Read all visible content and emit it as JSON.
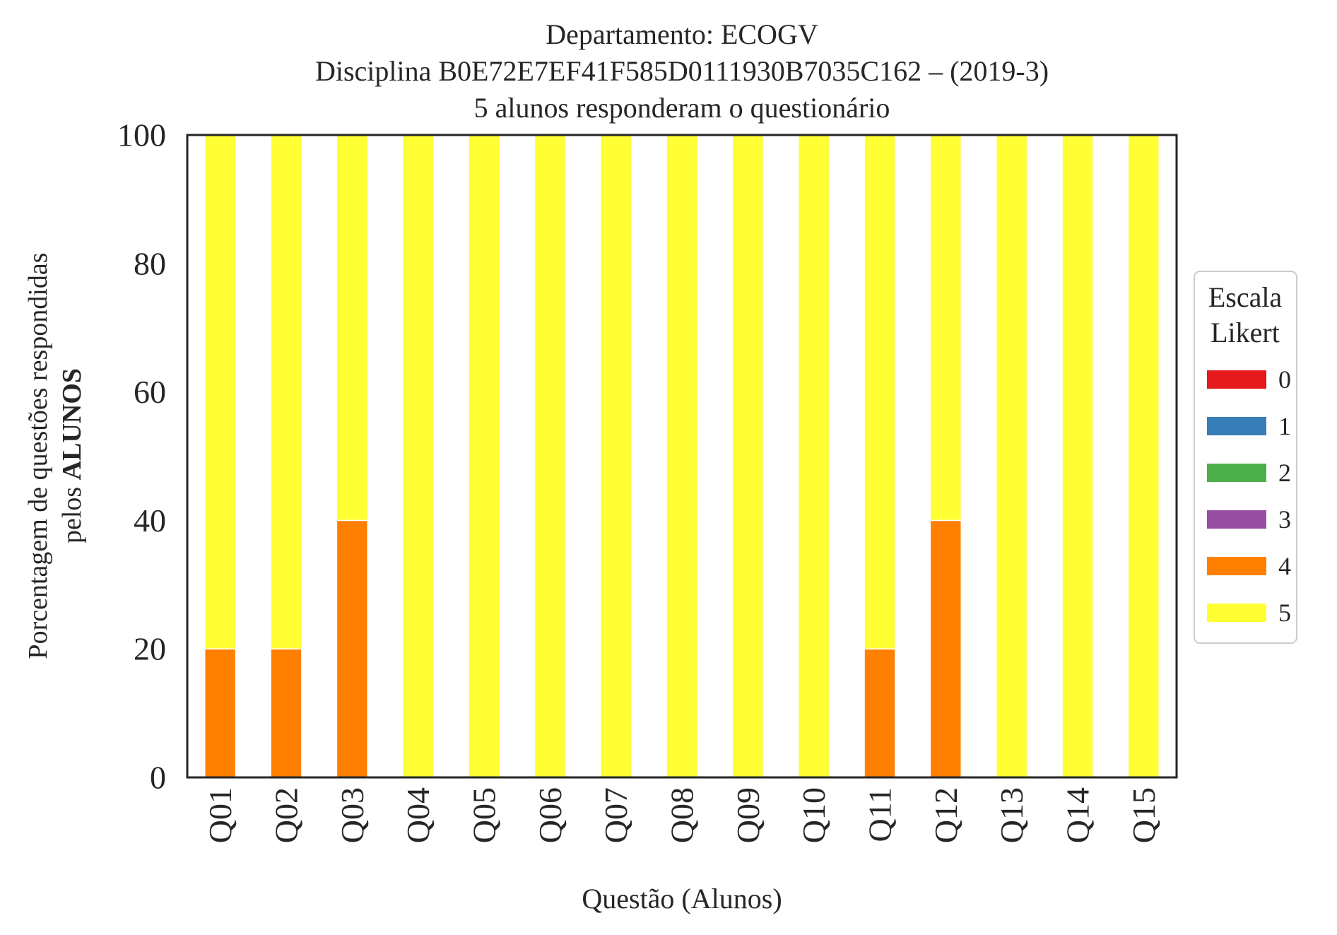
{
  "chart_data": {
    "type": "bar",
    "stacked": true,
    "title": [
      "Departamento: ECOGV",
      "Disciplina B0E72E7EF41F585D0111930B7035C162 – (2019-3)",
      "5 alunos responderam o questionário"
    ],
    "xlabel": "Questão (Alunos)",
    "ylabel_line1": "Porcentagem de questões respondidas",
    "ylabel_line2_prefix": "pelos ",
    "ylabel_line2_bold": "ALUNOS",
    "ylim": [
      0,
      100
    ],
    "yticks": [
      "0",
      "20",
      "40",
      "60",
      "80",
      "100"
    ],
    "grid": false,
    "legend_position": "right",
    "legend_title": [
      "Escala",
      "Likert"
    ],
    "categories": [
      "Q01",
      "Q02",
      "Q03",
      "Q04",
      "Q05",
      "Q06",
      "Q07",
      "Q08",
      "Q09",
      "Q10",
      "Q11",
      "Q12",
      "Q13",
      "Q14",
      "Q15"
    ],
    "series": [
      {
        "name": "0",
        "color": "#e41a1c",
        "values": [
          0,
          0,
          0,
          0,
          0,
          0,
          0,
          0,
          0,
          0,
          0,
          0,
          0,
          0,
          0
        ]
      },
      {
        "name": "1",
        "color": "#377eb8",
        "values": [
          0,
          0,
          0,
          0,
          0,
          0,
          0,
          0,
          0,
          0,
          0,
          0,
          0,
          0,
          0
        ]
      },
      {
        "name": "2",
        "color": "#4daf4a",
        "values": [
          0,
          0,
          0,
          0,
          0,
          0,
          0,
          0,
          0,
          0,
          0,
          0,
          0,
          0,
          0
        ]
      },
      {
        "name": "3",
        "color": "#984ea3",
        "values": [
          0,
          0,
          0,
          0,
          0,
          0,
          0,
          0,
          0,
          0,
          0,
          0,
          0,
          0,
          0
        ]
      },
      {
        "name": "4",
        "color": "#ff7f00",
        "values": [
          20,
          20,
          40,
          0,
          0,
          0,
          0,
          0,
          0,
          0,
          20,
          40,
          0,
          0,
          0
        ]
      },
      {
        "name": "5",
        "color": "#ffff33",
        "values": [
          80,
          80,
          60,
          100,
          100,
          100,
          100,
          100,
          100,
          100,
          80,
          60,
          100,
          100,
          100
        ]
      }
    ]
  }
}
